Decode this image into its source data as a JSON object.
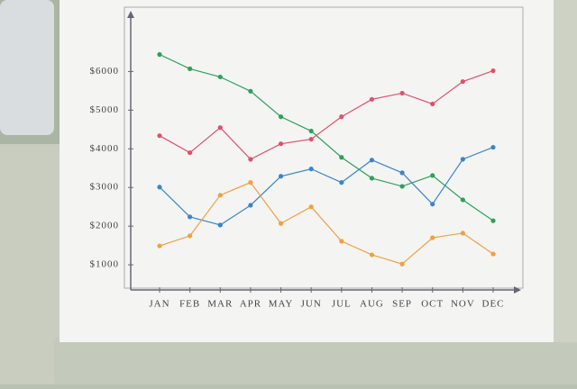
{
  "chart_data": {
    "type": "line",
    "categories": [
      "JAN",
      "FEB",
      "MAR",
      "APR",
      "MAY",
      "JUN",
      "JUL",
      "AUG",
      "SEP",
      "OCT",
      "NOV",
      "DEC"
    ],
    "series": [
      {
        "color": "#2fa05a",
        "values": [
          6440,
          6070,
          5860,
          5490,
          4830,
          4460,
          3780,
          3240,
          3030,
          3310,
          2680,
          2140
        ]
      },
      {
        "color": "#e0506a",
        "values": [
          4340,
          3900,
          4550,
          3730,
          4130,
          4250,
          4830,
          5280,
          5440,
          5160,
          5740,
          6020
        ]
      },
      {
        "color": "#3a86c8",
        "values": [
          3010,
          2240,
          2030,
          2540,
          3290,
          3480,
          3130,
          3710,
          3380,
          2570,
          3730,
          4040
        ]
      },
      {
        "color": "#f0a040",
        "values": [
          1490,
          1750,
          2800,
          3130,
          2070,
          2500,
          1610,
          1260,
          1020,
          1700,
          1820,
          1280
        ]
      }
    ],
    "ylim": [
      350,
      7500
    ],
    "yticks": [
      {
        "value": 1000,
        "label": "$1000"
      },
      {
        "value": 2000,
        "label": "$2000"
      },
      {
        "value": 3000,
        "label": "$3000"
      },
      {
        "value": 4000,
        "label": "$4000"
      },
      {
        "value": 5000,
        "label": "$5000"
      },
      {
        "value": 6000,
        "label": "$6000"
      }
    ]
  }
}
